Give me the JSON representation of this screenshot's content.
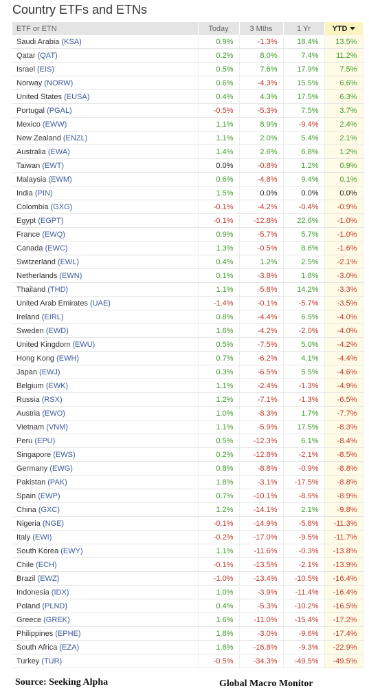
{
  "title": "Country ETFs and ETNs",
  "columns": [
    "ETF or ETN",
    "Today",
    "3 Mths",
    "1 Yr",
    "YTD"
  ],
  "sort_column": "YTD",
  "rows": [
    {
      "name": "Saudi Arabia",
      "ticker": "(KSA)",
      "today": "0.9%",
      "m3": "-1.3%",
      "y1": "18.4%",
      "ytd": "13.5%"
    },
    {
      "name": "Qatar",
      "ticker": "(QAT)",
      "today": "0.2%",
      "m3": "8.0%",
      "y1": "7.4%",
      "ytd": "11.2%"
    },
    {
      "name": "Israel",
      "ticker": "(EIS)",
      "today": "0.5%",
      "m3": "7.6%",
      "y1": "17.9%",
      "ytd": "7.5%"
    },
    {
      "name": "Norway",
      "ticker": "(NORW)",
      "today": "0.6%",
      "m3": "-4.3%",
      "y1": "15.5%",
      "ytd": "6.6%"
    },
    {
      "name": "United States",
      "ticker": "(EUSA)",
      "today": "0.4%",
      "m3": "4.3%",
      "y1": "17.5%",
      "ytd": "6.3%"
    },
    {
      "name": "Portugal",
      "ticker": "(PGAL)",
      "today": "-0.5%",
      "m3": "-5.3%",
      "y1": "7.5%",
      "ytd": "3.7%"
    },
    {
      "name": "Mexico",
      "ticker": "(EWW)",
      "today": "1.1%",
      "m3": "8.9%",
      "y1": "-9.4%",
      "ytd": "2.4%"
    },
    {
      "name": "New Zealand",
      "ticker": "(ENZL)",
      "today": "1.1%",
      "m3": "2.0%",
      "y1": "5.4%",
      "ytd": "2.1%"
    },
    {
      "name": "Australia",
      "ticker": "(EWA)",
      "today": "1.4%",
      "m3": "2.6%",
      "y1": "6.8%",
      "ytd": "1.2%"
    },
    {
      "name": "Taiwan",
      "ticker": "(EWT)",
      "today": "0.0%",
      "m3": "-0.8%",
      "y1": "1.2%",
      "ytd": "0.9%"
    },
    {
      "name": "Malaysia",
      "ticker": "(EWM)",
      "today": "0.6%",
      "m3": "-4.8%",
      "y1": "9.4%",
      "ytd": "0.1%"
    },
    {
      "name": "India",
      "ticker": "(PIN)",
      "today": "1.5%",
      "m3": "0.0%",
      "y1": "0.0%",
      "ytd": "0.0%"
    },
    {
      "name": "Colombia",
      "ticker": "(GXG)",
      "today": "-0.1%",
      "m3": "-4.2%",
      "y1": "-0.4%",
      "ytd": "-0.9%"
    },
    {
      "name": "Egypt",
      "ticker": "(EGPT)",
      "today": "-0.1%",
      "m3": "-12.8%",
      "y1": "22.6%",
      "ytd": "-1.0%"
    },
    {
      "name": "France",
      "ticker": "(EWQ)",
      "today": "0.9%",
      "m3": "-5.7%",
      "y1": "5.7%",
      "ytd": "-1.0%"
    },
    {
      "name": "Canada",
      "ticker": "(EWC)",
      "today": "1.3%",
      "m3": "-0.5%",
      "y1": "8.6%",
      "ytd": "-1.6%"
    },
    {
      "name": "Switzerland",
      "ticker": "(EWL)",
      "today": "0.4%",
      "m3": "1.2%",
      "y1": "2.5%",
      "ytd": "-2.1%"
    },
    {
      "name": "Netherlands",
      "ticker": "(EWN)",
      "today": "0.1%",
      "m3": "-3.8%",
      "y1": "1.8%",
      "ytd": "-3.0%"
    },
    {
      "name": "Thailand",
      "ticker": "(THD)",
      "today": "1.1%",
      "m3": "-5.8%",
      "y1": "14.2%",
      "ytd": "-3.3%"
    },
    {
      "name": "United Arab Emirates",
      "ticker": "(UAE)",
      "today": "-1.4%",
      "m3": "-0.1%",
      "y1": "-5.7%",
      "ytd": "-3.5%"
    },
    {
      "name": "Ireland",
      "ticker": "(EIRL)",
      "today": "0.8%",
      "m3": "-4.4%",
      "y1": "6.5%",
      "ytd": "-4.0%"
    },
    {
      "name": "Sweden",
      "ticker": "(EWD)",
      "today": "1.6%",
      "m3": "-4.2%",
      "y1": "-2.0%",
      "ytd": "-4.0%"
    },
    {
      "name": "United Kingdom",
      "ticker": "(EWU)",
      "today": "0.5%",
      "m3": "-7.5%",
      "y1": "5.0%",
      "ytd": "-4.2%"
    },
    {
      "name": "Hong Kong",
      "ticker": "(EWH)",
      "today": "0.7%",
      "m3": "-6.2%",
      "y1": "4.1%",
      "ytd": "-4.4%"
    },
    {
      "name": "Japan",
      "ticker": "(EWJ)",
      "today": "0.3%",
      "m3": "-6.5%",
      "y1": "5.5%",
      "ytd": "-4.6%"
    },
    {
      "name": "Belgium",
      "ticker": "(EWK)",
      "today": "1.1%",
      "m3": "-2.4%",
      "y1": "-1.3%",
      "ytd": "-4.9%"
    },
    {
      "name": "Russia",
      "ticker": "(RSX)",
      "today": "1.2%",
      "m3": "-7.1%",
      "y1": "-1.3%",
      "ytd": "-6.5%"
    },
    {
      "name": "Austria",
      "ticker": "(EWO)",
      "today": "1.0%",
      "m3": "-8.3%",
      "y1": "1.7%",
      "ytd": "-7.7%"
    },
    {
      "name": "Vietnam",
      "ticker": "(VNM)",
      "today": "1.1%",
      "m3": "-5.9%",
      "y1": "17.5%",
      "ytd": "-8.3%"
    },
    {
      "name": "Peru",
      "ticker": "(EPU)",
      "today": "0.5%",
      "m3": "-12.3%",
      "y1": "6.1%",
      "ytd": "-8.4%"
    },
    {
      "name": "Singapore",
      "ticker": "(EWS)",
      "today": "0.2%",
      "m3": "-12.8%",
      "y1": "-2.1%",
      "ytd": "-8.5%"
    },
    {
      "name": "Germany",
      "ticker": "(EWG)",
      "today": "0.8%",
      "m3": "-8.8%",
      "y1": "-0.9%",
      "ytd": "-8.8%"
    },
    {
      "name": "Pakistan",
      "ticker": "(PAK)",
      "today": "1.8%",
      "m3": "-3.1%",
      "y1": "-17.5%",
      "ytd": "-8.8%"
    },
    {
      "name": "Spain",
      "ticker": "(EWP)",
      "today": "0.7%",
      "m3": "-10.1%",
      "y1": "-8.9%",
      "ytd": "-8.9%"
    },
    {
      "name": "China",
      "ticker": "(GXC)",
      "today": "1.2%",
      "m3": "-14.1%",
      "y1": "2.1%",
      "ytd": "-9.8%"
    },
    {
      "name": "Nigeria",
      "ticker": "(NGE)",
      "today": "-0.1%",
      "m3": "-14.9%",
      "y1": "-5.8%",
      "ytd": "-11.3%"
    },
    {
      "name": "Italy",
      "ticker": "(EWI)",
      "today": "-0.2%",
      "m3": "-17.0%",
      "y1": "-9.5%",
      "ytd": "-11.7%"
    },
    {
      "name": "South Korea",
      "ticker": "(EWY)",
      "today": "1.1%",
      "m3": "-11.6%",
      "y1": "-0.3%",
      "ytd": "-13.8%"
    },
    {
      "name": "Chile",
      "ticker": "(ECH)",
      "today": "-0.1%",
      "m3": "-13.5%",
      "y1": "-2.1%",
      "ytd": "-13.9%"
    },
    {
      "name": "Brazil",
      "ticker": "(EWZ)",
      "today": "-1.0%",
      "m3": "-13.4%",
      "y1": "-10.5%",
      "ytd": "-16.4%"
    },
    {
      "name": "Indonesia",
      "ticker": "(IDX)",
      "today": "1.0%",
      "m3": "-3.9%",
      "y1": "-11.4%",
      "ytd": "-16.4%"
    },
    {
      "name": "Poland",
      "ticker": "(PLND)",
      "today": "0.4%",
      "m3": "-5.3%",
      "y1": "-10.2%",
      "ytd": "-16.5%"
    },
    {
      "name": "Greece",
      "ticker": "(GREK)",
      "today": "1.6%",
      "m3": "-11.0%",
      "y1": "-15.4%",
      "ytd": "-17.2%"
    },
    {
      "name": "Philippines",
      "ticker": "(EPHE)",
      "today": "1.8%",
      "m3": "-3.0%",
      "y1": "-9.6%",
      "ytd": "-17.4%"
    },
    {
      "name": "South Africa",
      "ticker": "(EZA)",
      "today": "1.8%",
      "m3": "-16.8%",
      "y1": "-9.3%",
      "ytd": "-22.9%"
    },
    {
      "name": "Turkey",
      "ticker": "(TUR)",
      "today": "-0.5%",
      "m3": "-34.3%",
      "y1": "-49.5%",
      "ytd": "-49.5%"
    }
  ],
  "footer": {
    "source": "Source:  Seeking Alpha",
    "brand": "Global Macro Monitor"
  },
  "colors": {
    "positive": "#3f9a2b",
    "negative": "#c0392b",
    "ticker": "#3a5a9a",
    "header_bg": "#e4e4e4",
    "ytd_header_bg": "#fbf4c0"
  }
}
